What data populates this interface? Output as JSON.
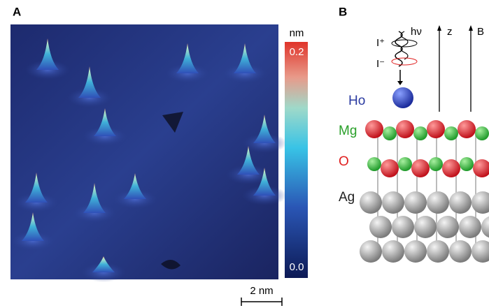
{
  "panel_a": {
    "label": "A",
    "colorbar": {
      "unit": "nm",
      "max": "0.2",
      "min": "0.0"
    },
    "scale_bar": "2 nm"
  },
  "panel_b": {
    "label": "B",
    "light": {
      "i_plus": "I⁺",
      "i_minus": "I⁻",
      "photon": "hν"
    },
    "axes": {
      "z": "z",
      "b": "B"
    },
    "layers": [
      "Ho",
      "Mg",
      "O",
      "Ag"
    ]
  }
}
